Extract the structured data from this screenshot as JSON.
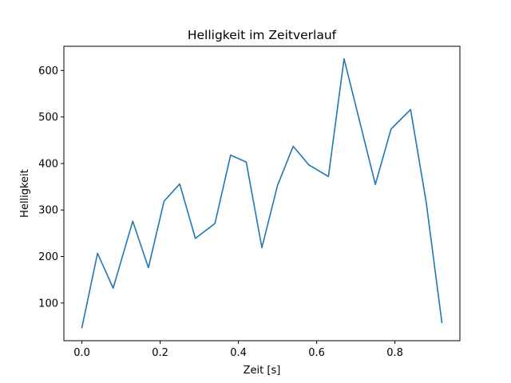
{
  "chart_data": {
    "type": "line",
    "title": "Helligkeit im Zeitverlauf",
    "xlabel": "Zeit [s]",
    "ylabel": "Helligkeit",
    "xlim": [
      -0.046,
      0.966
    ],
    "ylim": [
      19,
      652
    ],
    "xticks": [
      0.0,
      0.2,
      0.4,
      0.6,
      0.8
    ],
    "xtick_labels": [
      "0.0",
      "0.2",
      "0.4",
      "0.6",
      "0.8"
    ],
    "yticks": [
      100,
      200,
      300,
      400,
      500,
      600
    ],
    "ytick_labels": [
      "100",
      "200",
      "300",
      "400",
      "500",
      "600"
    ],
    "grid": false,
    "series": [
      {
        "color": "#1f77b4",
        "x": [
          0.0,
          0.04,
          0.08,
          0.13,
          0.17,
          0.21,
          0.25,
          0.29,
          0.34,
          0.38,
          0.42,
          0.46,
          0.5,
          0.54,
          0.58,
          0.63,
          0.67,
          0.71,
          0.75,
          0.79,
          0.84,
          0.88,
          0.92
        ],
        "y": [
          47,
          207,
          132,
          276,
          176,
          319,
          356,
          239,
          271,
          418,
          403,
          219,
          353,
          437,
          397,
          372,
          625,
          490,
          355,
          474,
          516,
          316,
          58
        ]
      }
    ]
  }
}
